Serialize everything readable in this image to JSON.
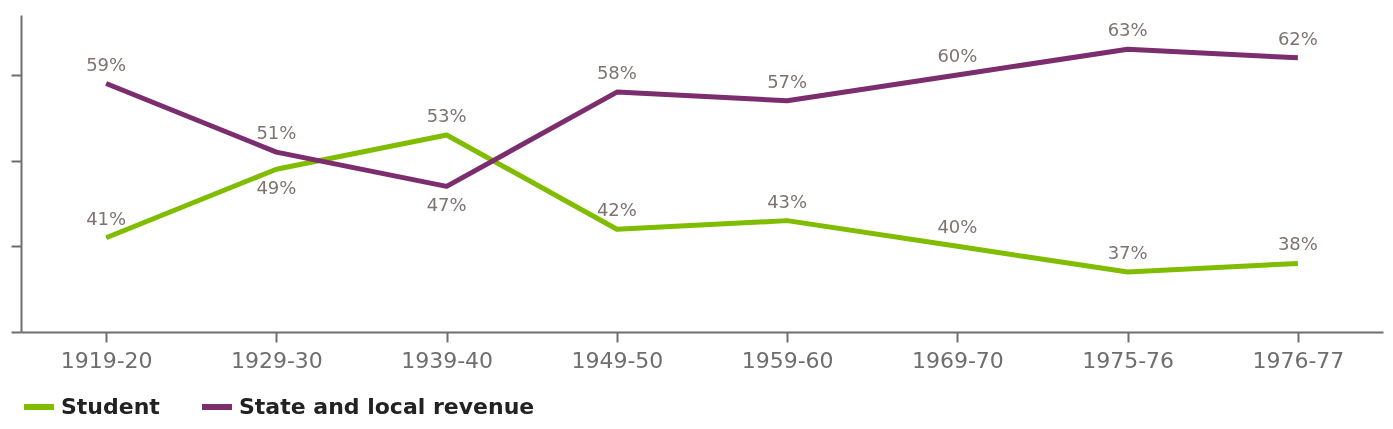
{
  "chart_data": {
    "type": "line",
    "categories": [
      "1919-20",
      "1929-30",
      "1939-40",
      "1949-50",
      "1959-60",
      "1969-70",
      "1975-76",
      "1976-77"
    ],
    "series": [
      {
        "name": "Student",
        "color": "#80bc00",
        "values": [
          41,
          49,
          53,
          42,
          43,
          40,
          37,
          38
        ],
        "value_labels": [
          "41%",
          "49%",
          "53%",
          "42%",
          "43%",
          "40%",
          "37%",
          "38%"
        ]
      },
      {
        "name": "State and local revenue",
        "color": "#7b2d6e",
        "values": [
          59,
          51,
          47,
          58,
          57,
          60,
          63,
          62
        ],
        "value_labels": [
          "59%",
          "51%",
          "47%",
          "58%",
          "57%",
          "60%",
          "63%",
          "62%"
        ]
      }
    ],
    "ylim": [
      30,
      67
    ],
    "yticks": [
      {
        "value": 30,
        "label": null
      },
      {
        "value": 40,
        "label": null
      },
      {
        "value": 50,
        "label": null
      },
      {
        "value": 60,
        "label": null
      }
    ],
    "tick_labels": "x",
    "legend": "bottom",
    "grid": false,
    "marker": "none",
    "line_style": "solid"
  }
}
